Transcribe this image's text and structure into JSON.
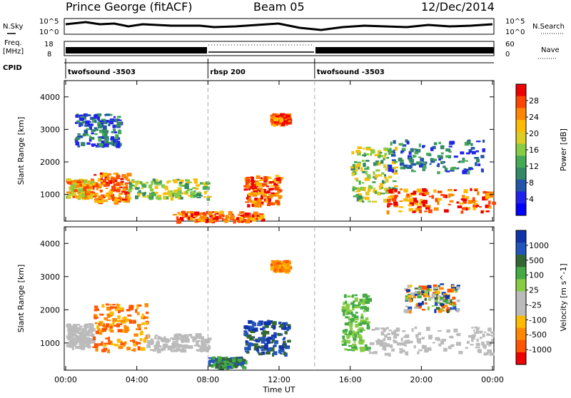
{
  "header": {
    "station": "Prince George (fitACF)",
    "beam": "Beam 05",
    "date": "12/Dec/2014"
  },
  "top_panels": {
    "nsky_label": "N.Sky",
    "nsky_ticks": [
      "10^5",
      "10^0"
    ],
    "nsearch_label": "N.Search",
    "nsearch_ticks": [
      "10^5",
      "10^0"
    ],
    "freq_label_1": "Freq.",
    "freq_label_2": "[MHz]",
    "freq_ticks": [
      "18",
      "8"
    ],
    "nave_label": "Nave",
    "nave_ticks": [
      "60",
      "0"
    ],
    "cpid_label": "CPID",
    "cpid_segments": [
      {
        "label": "twofsound -3503",
        "start_h": 0,
        "end_h": 8
      },
      {
        "label": "rbsp 200",
        "start_h": 8,
        "end_h": 14
      },
      {
        "label": "twofsound -3503",
        "start_h": 14,
        "end_h": 24
      }
    ]
  },
  "chart_data": [
    {
      "type": "heatmap",
      "name": "power-panel",
      "ylabel": "Slant Range [km]",
      "xlim": [
        0,
        24
      ],
      "ylim": [
        180,
        4500
      ],
      "yticks": [
        1000,
        2000,
        3000,
        4000
      ],
      "colorbar": {
        "label": "Power [dB]",
        "ticks": [
          "28",
          "24",
          "20",
          "16",
          "12",
          "8",
          "4"
        ],
        "colors": [
          "#ee0000",
          "#ff4400",
          "#ff8800",
          "#ffbb00",
          "#ddcc22",
          "#88cc44",
          "#44aa55",
          "#338866",
          "#2255aa",
          "#2222ee",
          "#0000ff"
        ]
      },
      "echo_regions": [
        {
          "x": [
            0.0,
            1.5
          ],
          "y": [
            900,
            1500
          ],
          "level": "mid-high"
        },
        {
          "x": [
            1.5,
            3.5
          ],
          "y": [
            800,
            1700
          ],
          "level": "high"
        },
        {
          "x": [
            3.5,
            8.0
          ],
          "y": [
            900,
            1500
          ],
          "level": "mid"
        },
        {
          "x": [
            0.5,
            3.0
          ],
          "y": [
            2500,
            3500
          ],
          "level": "low"
        },
        {
          "x": [
            6.0,
            11.0
          ],
          "y": [
            200,
            500
          ],
          "level": "high"
        },
        {
          "x": [
            10.0,
            12.0
          ],
          "y": [
            700,
            1600
          ],
          "level": "high"
        },
        {
          "x": [
            11.5,
            12.5
          ],
          "y": [
            3200,
            3500
          ],
          "level": "high"
        },
        {
          "x": [
            16.0,
            18.5
          ],
          "y": [
            800,
            2500
          ],
          "level": "mid"
        },
        {
          "x": [
            18.0,
            24.0
          ],
          "y": [
            500,
            1200
          ],
          "level": "high"
        },
        {
          "x": [
            18.0,
            23.5
          ],
          "y": [
            1700,
            2700
          ],
          "level": "low"
        }
      ]
    },
    {
      "type": "heatmap",
      "name": "velocity-panel",
      "ylabel": "Slant Range [km]",
      "xlabel": "Time UT",
      "xlim": [
        0,
        24
      ],
      "ylim": [
        180,
        4500
      ],
      "yticks": [
        1000,
        2000,
        3000,
        4000
      ],
      "xticks": [
        "00:00",
        "04:00",
        "08:00",
        "12:00",
        "16:00",
        "20:00",
        "00:00"
      ],
      "colorbar": {
        "label": "Velocity [m s^-1]",
        "ticks": [
          "1000",
          "500",
          "100",
          "25",
          "-25",
          "-100",
          "-500",
          "-1000"
        ],
        "colors": [
          "#1133aa",
          "#2255bb",
          "#336633",
          "#44aa44",
          "#88cc44",
          "#bbbbbb",
          "#bbbbbb",
          "#ffbb00",
          "#ff8800",
          "#ff5500",
          "#ee0000"
        ]
      },
      "echo_regions": [
        {
          "x": [
            0.0,
            1.5
          ],
          "y": [
            900,
            1600
          ],
          "level": "ground"
        },
        {
          "x": [
            1.5,
            4.5
          ],
          "y": [
            800,
            2200
          ],
          "level": "away-medium"
        },
        {
          "x": [
            4.5,
            8.0
          ],
          "y": [
            800,
            1300
          ],
          "level": "ground"
        },
        {
          "x": [
            8.0,
            10.0
          ],
          "y": [
            300,
            600
          ],
          "level": "toward-medium"
        },
        {
          "x": [
            10.0,
            12.5
          ],
          "y": [
            700,
            1700
          ],
          "level": "toward-strong"
        },
        {
          "x": [
            11.5,
            12.5
          ],
          "y": [
            3200,
            3500
          ],
          "level": "away-medium"
        },
        {
          "x": [
            15.5,
            17.0
          ],
          "y": [
            800,
            2500
          ],
          "level": "toward-low"
        },
        {
          "x": [
            17.0,
            24.0
          ],
          "y": [
            700,
            1500
          ],
          "level": "ground"
        },
        {
          "x": [
            19.0,
            22.0
          ],
          "y": [
            2000,
            2800
          ],
          "level": "mixed"
        }
      ]
    }
  ]
}
